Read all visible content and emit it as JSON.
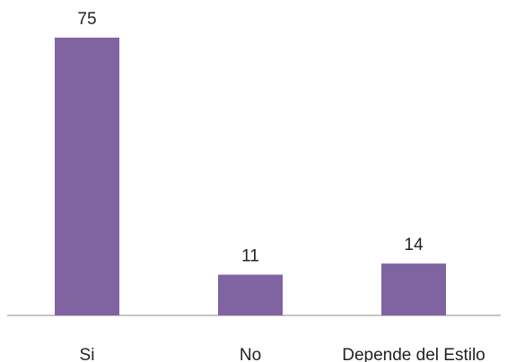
{
  "chart_data": {
    "type": "bar",
    "categories": [
      "Si",
      "No",
      "Depende del Estilo"
    ],
    "values": [
      75,
      11,
      14
    ],
    "color": "#8064a2"
  }
}
